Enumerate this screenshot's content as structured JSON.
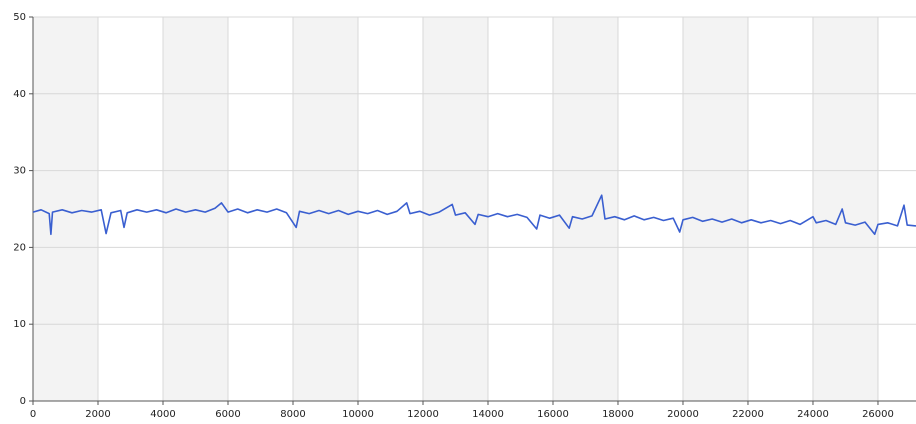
{
  "chart_data": {
    "type": "line",
    "x": [
      0,
      250,
      500,
      550,
      600,
      900,
      1200,
      1500,
      1800,
      2100,
      2250,
      2400,
      2700,
      2800,
      2900,
      3200,
      3500,
      3800,
      4100,
      4400,
      4700,
      5000,
      5300,
      5600,
      5800,
      6000,
      6300,
      6600,
      6900,
      7200,
      7500,
      7800,
      8100,
      8200,
      8500,
      8800,
      9100,
      9400,
      9700,
      10000,
      10300,
      10600,
      10900,
      11200,
      11500,
      11600,
      11900,
      12200,
      12500,
      12900,
      13000,
      13300,
      13600,
      13700,
      14000,
      14300,
      14600,
      14900,
      15200,
      15500,
      15600,
      15900,
      16200,
      16500,
      16600,
      16900,
      17200,
      17500,
      17600,
      17900,
      18200,
      18500,
      18800,
      19100,
      19400,
      19700,
      19900,
      20000,
      20300,
      20600,
      20900,
      21200,
      21500,
      21800,
      22100,
      22400,
      22700,
      23000,
      23300,
      23600,
      24000,
      24100,
      24400,
      24700,
      24900,
      25000,
      25300,
      25600,
      25900,
      26000,
      26300,
      26600,
      26800,
      26900,
      27170
    ],
    "series": [
      {
        "color": "#3a5fd0",
        "values": [
          24.6,
          24.9,
          24.4,
          21.7,
          24.6,
          24.9,
          24.5,
          24.8,
          24.6,
          24.9,
          21.8,
          24.5,
          24.8,
          22.6,
          24.5,
          24.9,
          24.6,
          24.9,
          24.5,
          25.0,
          24.6,
          24.9,
          24.6,
          25.1,
          25.8,
          24.6,
          25.0,
          24.5,
          24.9,
          24.6,
          25.0,
          24.5,
          22.6,
          24.7,
          24.4,
          24.8,
          24.4,
          24.8,
          24.3,
          24.7,
          24.4,
          24.8,
          24.3,
          24.7,
          25.8,
          24.4,
          24.7,
          24.2,
          24.6,
          25.6,
          24.2,
          24.5,
          23.0,
          24.3,
          24.0,
          24.4,
          24.0,
          24.3,
          23.9,
          22.4,
          24.2,
          23.8,
          24.2,
          22.5,
          24.0,
          23.7,
          24.1,
          26.8,
          23.7,
          24.0,
          23.6,
          24.1,
          23.6,
          23.9,
          23.5,
          23.8,
          22.0,
          23.6,
          23.9,
          23.4,
          23.7,
          23.3,
          23.7,
          23.2,
          23.6,
          23.2,
          23.5,
          23.1,
          23.5,
          23.0,
          24.0,
          23.2,
          23.5,
          23.0,
          25.0,
          23.2,
          22.9,
          23.3,
          21.7,
          23.0,
          23.2,
          22.8,
          25.5,
          22.9,
          22.8
        ]
      }
    ],
    "xlim": [
      0,
      27170
    ],
    "xticks": [
      0,
      2000,
      4000,
      6000,
      8000,
      10000,
      12000,
      14000,
      16000,
      18000,
      20000,
      22000,
      24000,
      26000
    ],
    "ylim": [
      0,
      50
    ],
    "yticks": [
      0,
      10,
      20,
      30,
      40,
      50
    ],
    "grid": true
  }
}
